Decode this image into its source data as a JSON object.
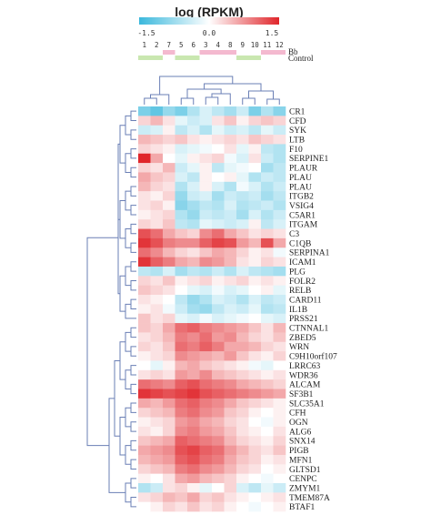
{
  "chart_data": {
    "type": "heatmap",
    "title": "log (RPKM)",
    "color_scale": {
      "min": -1.5,
      "max": 1.5,
      "ticks": [
        "-1.5",
        "0.0",
        "1.5"
      ],
      "low_color": "#3bb8dc",
      "mid_color": "#ffffff",
      "high_color": "#e0262b"
    },
    "columns": [
      "1",
      "2",
      "7",
      "5",
      "6",
      "3",
      "4",
      "8",
      "9",
      "10",
      "11",
      "12"
    ],
    "column_groups": [
      {
        "name": "Bb",
        "color": "#f4b9cf"
      },
      {
        "name": "Control",
        "color": "#c9e7b0"
      }
    ],
    "column_group_assignment": [
      "Control",
      "Control",
      "Bb",
      "Control",
      "Control",
      "Bb",
      "Bb",
      "Bb",
      "Control",
      "Control",
      "Bb",
      "Bb"
    ],
    "rows": [
      "CR1",
      "CFD",
      "SYK",
      "LTB",
      "F10",
      "SERPINE1",
      "PLAUR",
      "PLAU",
      "PLAU",
      "ITGB2",
      "VSIG4",
      "C5AR1",
      "ITGAM",
      "C3",
      "C1QB",
      "SERPINA1",
      "ICAM1",
      "PLG",
      "FOLR2",
      "RELB",
      "CARD11",
      "IL1B",
      "PRSS21",
      "CTNNAL1",
      "ZBED5",
      "WRN",
      "C9H10orf107",
      "LRRC63",
      "WDR36",
      "ALCAM",
      "SF3B1",
      "SLC35A1",
      "CFH",
      "OGN",
      "ALG6",
      "SNX14",
      "PIGB",
      "MFN1",
      "GLTSD1",
      "CENPC",
      "ZMYM1",
      "TMEM87A",
      "BTAF1"
    ],
    "values": [
      [
        -1.0,
        -1.2,
        -0.8,
        -1.0,
        -0.6,
        -0.3,
        -0.5,
        -0.7,
        -0.4,
        -1.0,
        -0.6,
        -0.9
      ],
      [
        0.3,
        0.5,
        0.2,
        -0.2,
        -0.4,
        -0.3,
        0.2,
        0.4,
        0.1,
        0.3,
        0.4,
        0.3
      ],
      [
        -0.4,
        -0.3,
        0.1,
        -0.5,
        -0.3,
        -0.6,
        -0.2,
        -0.4,
        -0.3,
        -0.5,
        -0.2,
        -0.4
      ],
      [
        0.5,
        0.4,
        0.3,
        0.4,
        0.2,
        0.1,
        0.2,
        0.3,
        0.2,
        0.4,
        0.3,
        0.2
      ],
      [
        0.3,
        0.2,
        0.1,
        -0.3,
        -0.2,
        -0.1,
        0.0,
        0.2,
        -0.2,
        0.1,
        -0.5,
        -0.6
      ],
      [
        1.5,
        0.6,
        0.0,
        -0.2,
        0.1,
        0.2,
        0.3,
        -0.1,
        -0.3,
        0.2,
        -0.4,
        -0.6
      ],
      [
        0.3,
        0.2,
        0.5,
        -0.4,
        -0.2,
        0.1,
        -0.5,
        -0.2,
        -0.1,
        0.0,
        -0.7,
        -0.5
      ],
      [
        0.6,
        0.4,
        0.3,
        -0.3,
        -0.5,
        0.1,
        0.0,
        0.1,
        -0.2,
        -0.6,
        -0.4,
        -0.5
      ],
      [
        0.5,
        0.3,
        0.2,
        -0.6,
        -0.3,
        0.1,
        -0.3,
        -0.6,
        -0.1,
        -0.3,
        -0.6,
        -0.4
      ],
      [
        0.2,
        0.1,
        0.3,
        -0.8,
        -0.4,
        -0.3,
        -0.7,
        -0.4,
        -0.5,
        -0.4,
        -0.7,
        -0.5
      ],
      [
        0.2,
        0.3,
        0.1,
        -0.9,
        -0.7,
        -0.5,
        -0.6,
        -0.3,
        -0.6,
        -0.5,
        -0.4,
        -0.6
      ],
      [
        0.1,
        0.2,
        0.3,
        -0.6,
        -0.8,
        -0.4,
        -0.5,
        -0.4,
        -0.7,
        -0.3,
        -0.6,
        -0.4
      ],
      [
        0.3,
        0.2,
        0.4,
        -0.5,
        -0.6,
        -0.2,
        -0.3,
        -0.4,
        -0.3,
        0.1,
        -0.5,
        -0.3
      ],
      [
        1.2,
        1.0,
        0.6,
        0.4,
        0.3,
        0.8,
        1.0,
        0.6,
        0.4,
        0.2,
        0.3,
        0.2
      ],
      [
        1.4,
        1.2,
        0.9,
        0.8,
        0.8,
        1.1,
        1.3,
        1.2,
        0.7,
        0.5,
        1.2,
        0.6
      ],
      [
        1.0,
        0.8,
        0.5,
        0.3,
        0.2,
        0.4,
        0.6,
        0.5,
        0.3,
        0.1,
        0.2,
        -0.1
      ],
      [
        1.4,
        1.1,
        0.9,
        0.6,
        0.5,
        0.8,
        0.7,
        0.5,
        0.2,
        0.1,
        0.3,
        0.2
      ],
      [
        -0.5,
        -0.6,
        -0.3,
        -0.7,
        -0.5,
        -0.6,
        -0.4,
        -0.6,
        -0.3,
        -0.5,
        -0.6,
        -0.7
      ],
      [
        0.3,
        0.2,
        0.4,
        0.1,
        0.2,
        0.3,
        0.1,
        0.2,
        0.3,
        0.1,
        0.2,
        0.1
      ],
      [
        0.4,
        0.3,
        0.2,
        0.0,
        -0.2,
        -0.3,
        -0.1,
        -0.3,
        -0.2,
        0.0,
        0.1,
        -0.2
      ],
      [
        0.2,
        0.1,
        0.0,
        -0.5,
        -0.8,
        -0.6,
        -0.3,
        -0.4,
        -0.6,
        -0.3,
        -0.5,
        -0.4
      ],
      [
        0.1,
        0.2,
        -0.1,
        -0.4,
        -0.7,
        -0.8,
        -0.5,
        -0.3,
        -0.4,
        -0.2,
        -0.6,
        -0.5
      ],
      [
        0.4,
        0.2,
        0.3,
        -0.2,
        -0.3,
        -0.1,
        -0.3,
        -0.2,
        -0.1,
        0.0,
        -0.2,
        -0.3
      ],
      [
        0.4,
        0.3,
        0.6,
        1.0,
        1.1,
        0.9,
        0.8,
        0.7,
        0.6,
        0.4,
        0.2,
        0.5
      ],
      [
        0.2,
        0.3,
        0.5,
        0.9,
        0.8,
        1.0,
        0.7,
        0.8,
        0.5,
        0.3,
        0.2,
        0.4
      ],
      [
        0.3,
        0.2,
        0.4,
        1.0,
        0.9,
        1.1,
        0.9,
        0.6,
        0.6,
        0.5,
        0.3,
        0.2
      ],
      [
        0.1,
        0.2,
        0.3,
        0.8,
        0.7,
        0.6,
        0.5,
        0.7,
        0.4,
        0.2,
        0.1,
        0.3
      ],
      [
        0.0,
        -0.2,
        0.1,
        0.5,
        0.6,
        0.4,
        0.3,
        0.2,
        0.1,
        -0.1,
        -0.2,
        0.0
      ],
      [
        0.2,
        0.3,
        0.2,
        0.7,
        0.6,
        0.8,
        0.5,
        0.4,
        0.3,
        0.2,
        0.1,
        0.2
      ],
      [
        1.0,
        0.9,
        0.8,
        1.1,
        1.2,
        1.0,
        0.9,
        0.8,
        0.6,
        0.5,
        0.4,
        0.3
      ],
      [
        1.4,
        1.3,
        1.2,
        1.3,
        1.4,
        1.2,
        1.1,
        1.0,
        0.9,
        0.8,
        0.7,
        0.6
      ],
      [
        0.6,
        0.5,
        0.7,
        1.0,
        1.1,
        0.9,
        0.8,
        0.6,
        0.4,
        0.3,
        0.2,
        0.1
      ],
      [
        0.3,
        0.4,
        0.5,
        0.9,
        1.0,
        0.8,
        0.7,
        0.4,
        0.3,
        0.1,
        0.0,
        0.1
      ],
      [
        0.1,
        0.2,
        0.3,
        0.7,
        0.8,
        0.6,
        0.5,
        0.3,
        0.2,
        0.0,
        -0.1,
        0.1
      ],
      [
        0.2,
        0.1,
        0.3,
        0.8,
        0.9,
        0.7,
        0.6,
        0.4,
        0.2,
        0.1,
        0.0,
        0.2
      ],
      [
        0.4,
        0.5,
        0.6,
        1.1,
        1.0,
        0.9,
        0.8,
        0.5,
        0.3,
        0.2,
        0.1,
        0.3
      ],
      [
        0.6,
        0.7,
        0.8,
        1.2,
        1.3,
        1.1,
        1.0,
        0.7,
        0.5,
        0.3,
        0.2,
        0.4
      ],
      [
        0.5,
        0.6,
        0.7,
        1.1,
        1.2,
        1.0,
        0.9,
        0.6,
        0.4,
        0.3,
        0.1,
        0.2
      ],
      [
        0.3,
        0.4,
        0.5,
        0.9,
        1.0,
        0.8,
        0.7,
        0.5,
        0.3,
        0.2,
        0.0,
        0.1
      ],
      [
        0.1,
        0.0,
        0.2,
        0.6,
        0.7,
        0.5,
        0.4,
        0.3,
        0.1,
        0.0,
        -0.1,
        0.0
      ],
      [
        -0.6,
        -0.4,
        0.2,
        0.3,
        0.1,
        -0.2,
        0.0,
        0.3,
        -0.3,
        -0.5,
        -0.2,
        -0.4
      ],
      [
        0.2,
        0.3,
        0.5,
        0.4,
        0.6,
        0.3,
        0.4,
        0.2,
        0.1,
        0.0,
        0.1,
        0.2
      ],
      [
        0.0,
        0.1,
        0.3,
        0.2,
        0.4,
        0.2,
        0.3,
        0.1,
        0.0,
        -0.1,
        0.0,
        0.1
      ]
    ]
  }
}
